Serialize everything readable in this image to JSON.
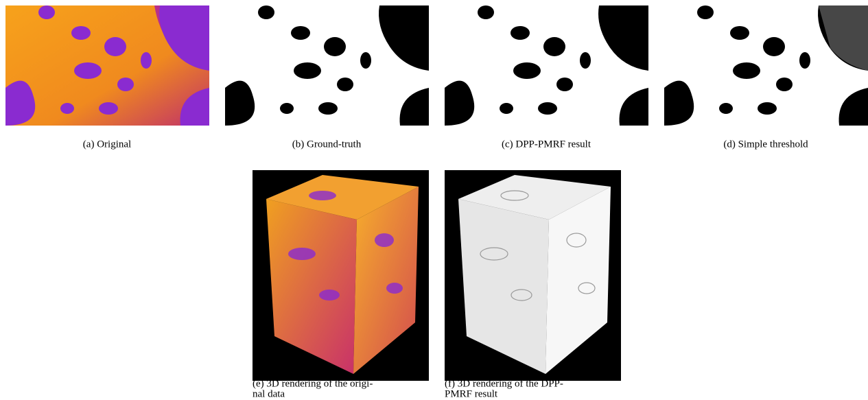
{
  "figure": {
    "panels": [
      {
        "caption_lines": [
          "(a) Original"
        ]
      },
      {
        "caption_lines": [
          "(b) Ground-truth"
        ]
      },
      {
        "caption_lines": [
          "(c) DPP-PMRF result"
        ]
      },
      {
        "caption_lines": [
          "(d) Simple threshold"
        ]
      },
      {
        "caption_lines": [
          "(e) 3D rendering of the origi-",
          "nal data"
        ]
      },
      {
        "caption_lines": [
          "(f) 3D rendering of the DPP-",
          "PMRF result"
        ]
      }
    ]
  }
}
